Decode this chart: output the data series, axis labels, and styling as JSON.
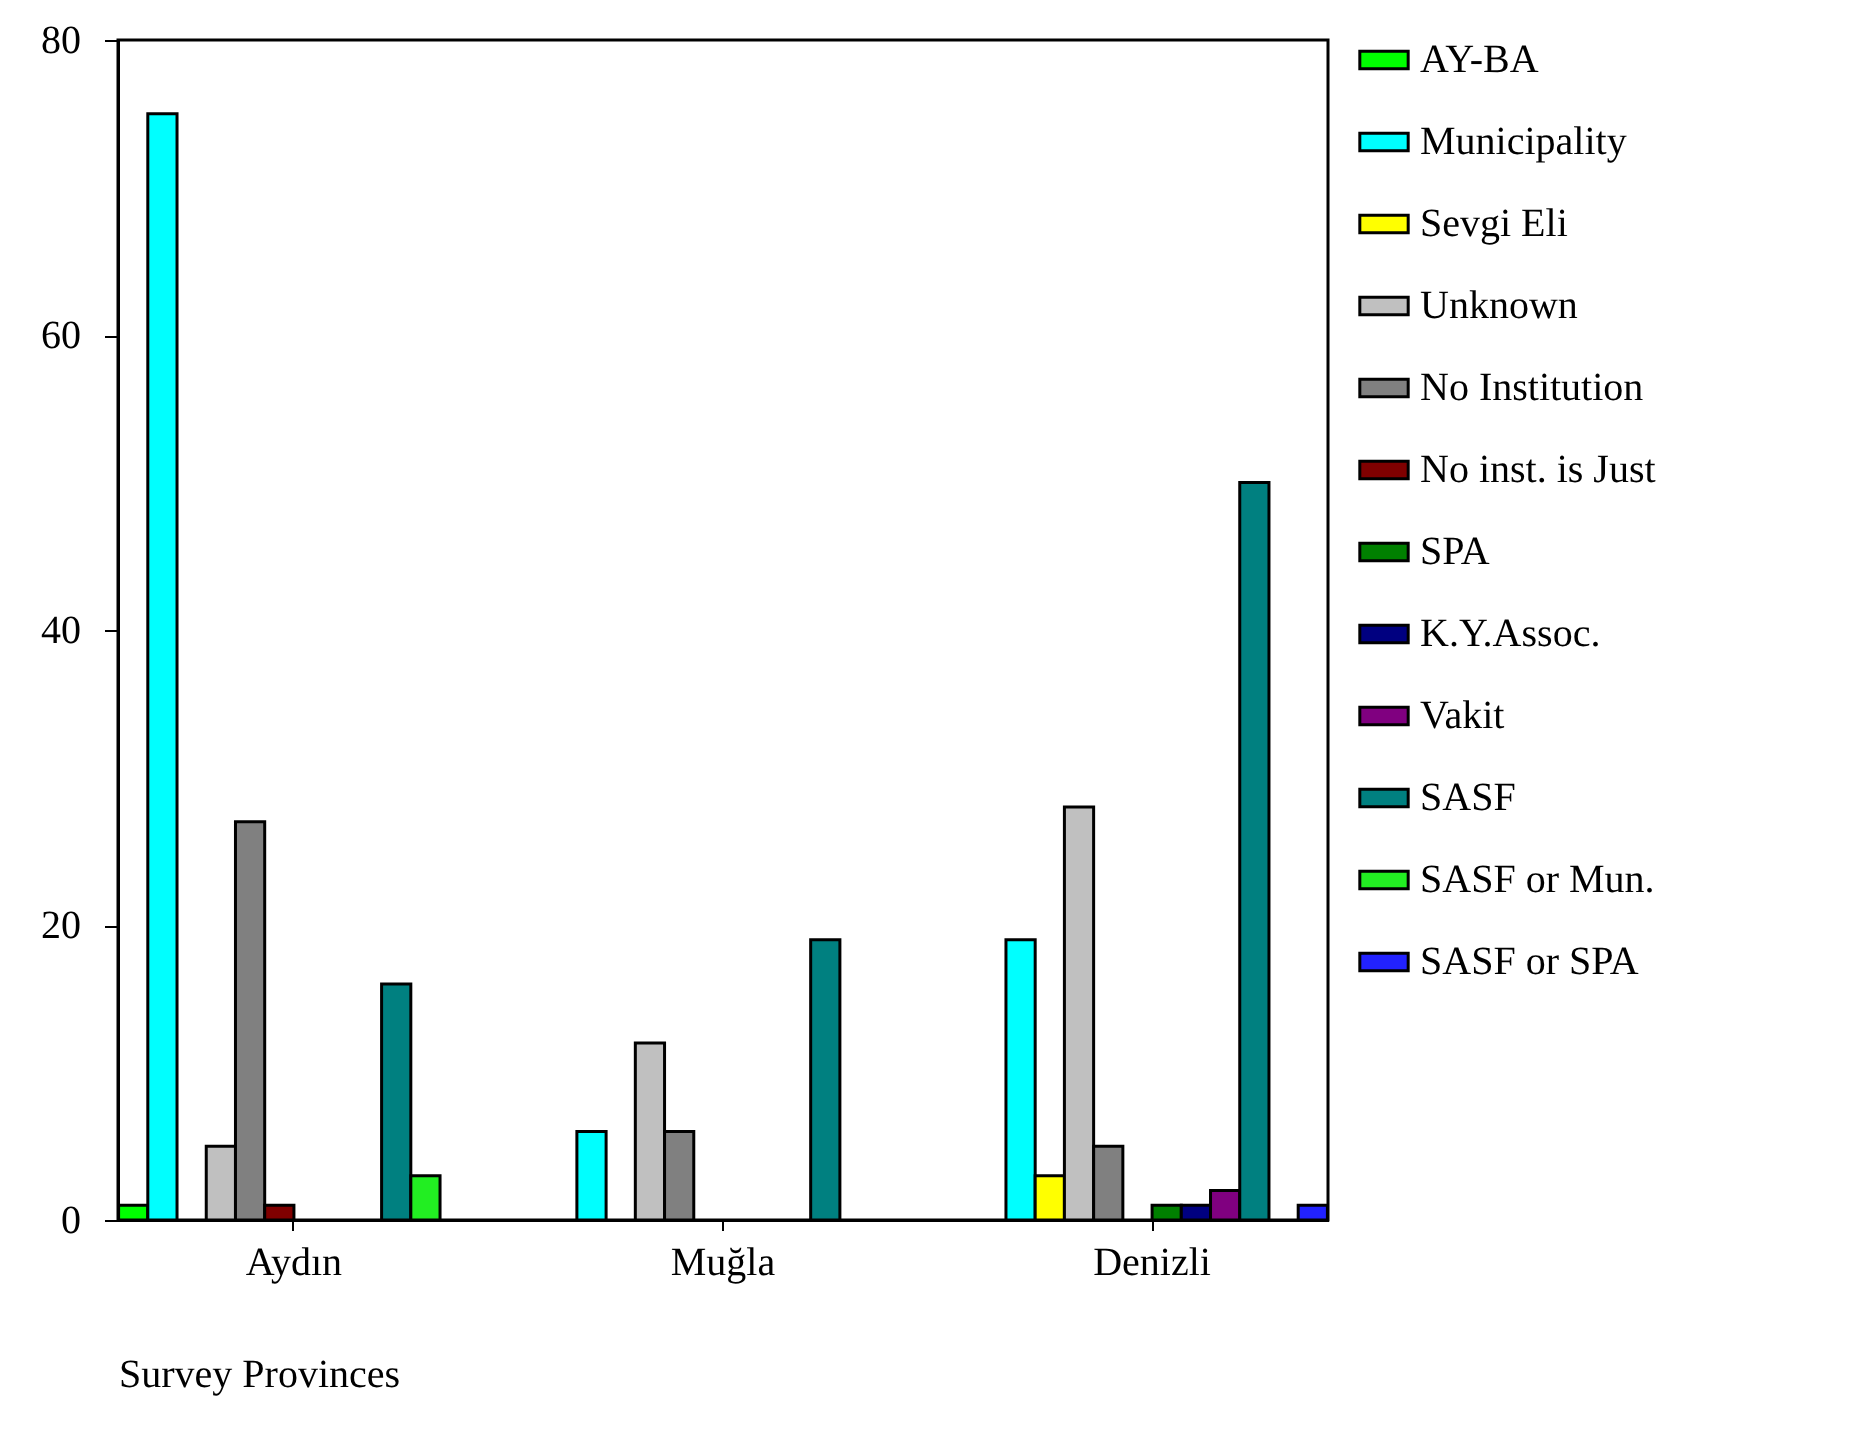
{
  "chart_data": {
    "type": "bar",
    "xlabel": "Survey Provinces",
    "categories": [
      "Aydın",
      "Muğla",
      "Denizli"
    ],
    "series": [
      {
        "name": "AY-BA",
        "color": "#00ff00",
        "values": [
          1,
          0,
          0
        ]
      },
      {
        "name": "Municipality",
        "color": "#00ffff",
        "values": [
          75,
          6,
          19
        ]
      },
      {
        "name": "Sevgi Eli",
        "color": "#ffff00",
        "values": [
          0,
          0,
          3
        ]
      },
      {
        "name": "Unknown",
        "color": "#c0c0c0",
        "values": [
          5,
          12,
          28
        ]
      },
      {
        "name": "No Institution",
        "color": "#808080",
        "values": [
          27,
          6,
          5
        ]
      },
      {
        "name": "No inst. is Just",
        "color": "#800000",
        "values": [
          1,
          0,
          0
        ]
      },
      {
        "name": "SPA",
        "color": "#008000",
        "values": [
          0,
          0,
          1
        ]
      },
      {
        "name": "K.Y.Assoc.",
        "color": "#000080",
        "values": [
          0,
          0,
          1
        ]
      },
      {
        "name": "Vakit",
        "color": "#800080",
        "values": [
          0,
          0,
          2
        ]
      },
      {
        "name": "SASF",
        "color": "#008080",
        "values": [
          16,
          19,
          50
        ]
      },
      {
        "name": "SASF or Mun.",
        "color": "#22ee22",
        "values": [
          3,
          0,
          0
        ]
      },
      {
        "name": "SASF or SPA",
        "color": "#2222ff",
        "values": [
          0,
          0,
          1
        ]
      }
    ],
    "ylim": [
      0,
      80
    ],
    "yticks": [
      0,
      20,
      40,
      60,
      80
    ],
    "grid": false,
    "legend": "right"
  }
}
